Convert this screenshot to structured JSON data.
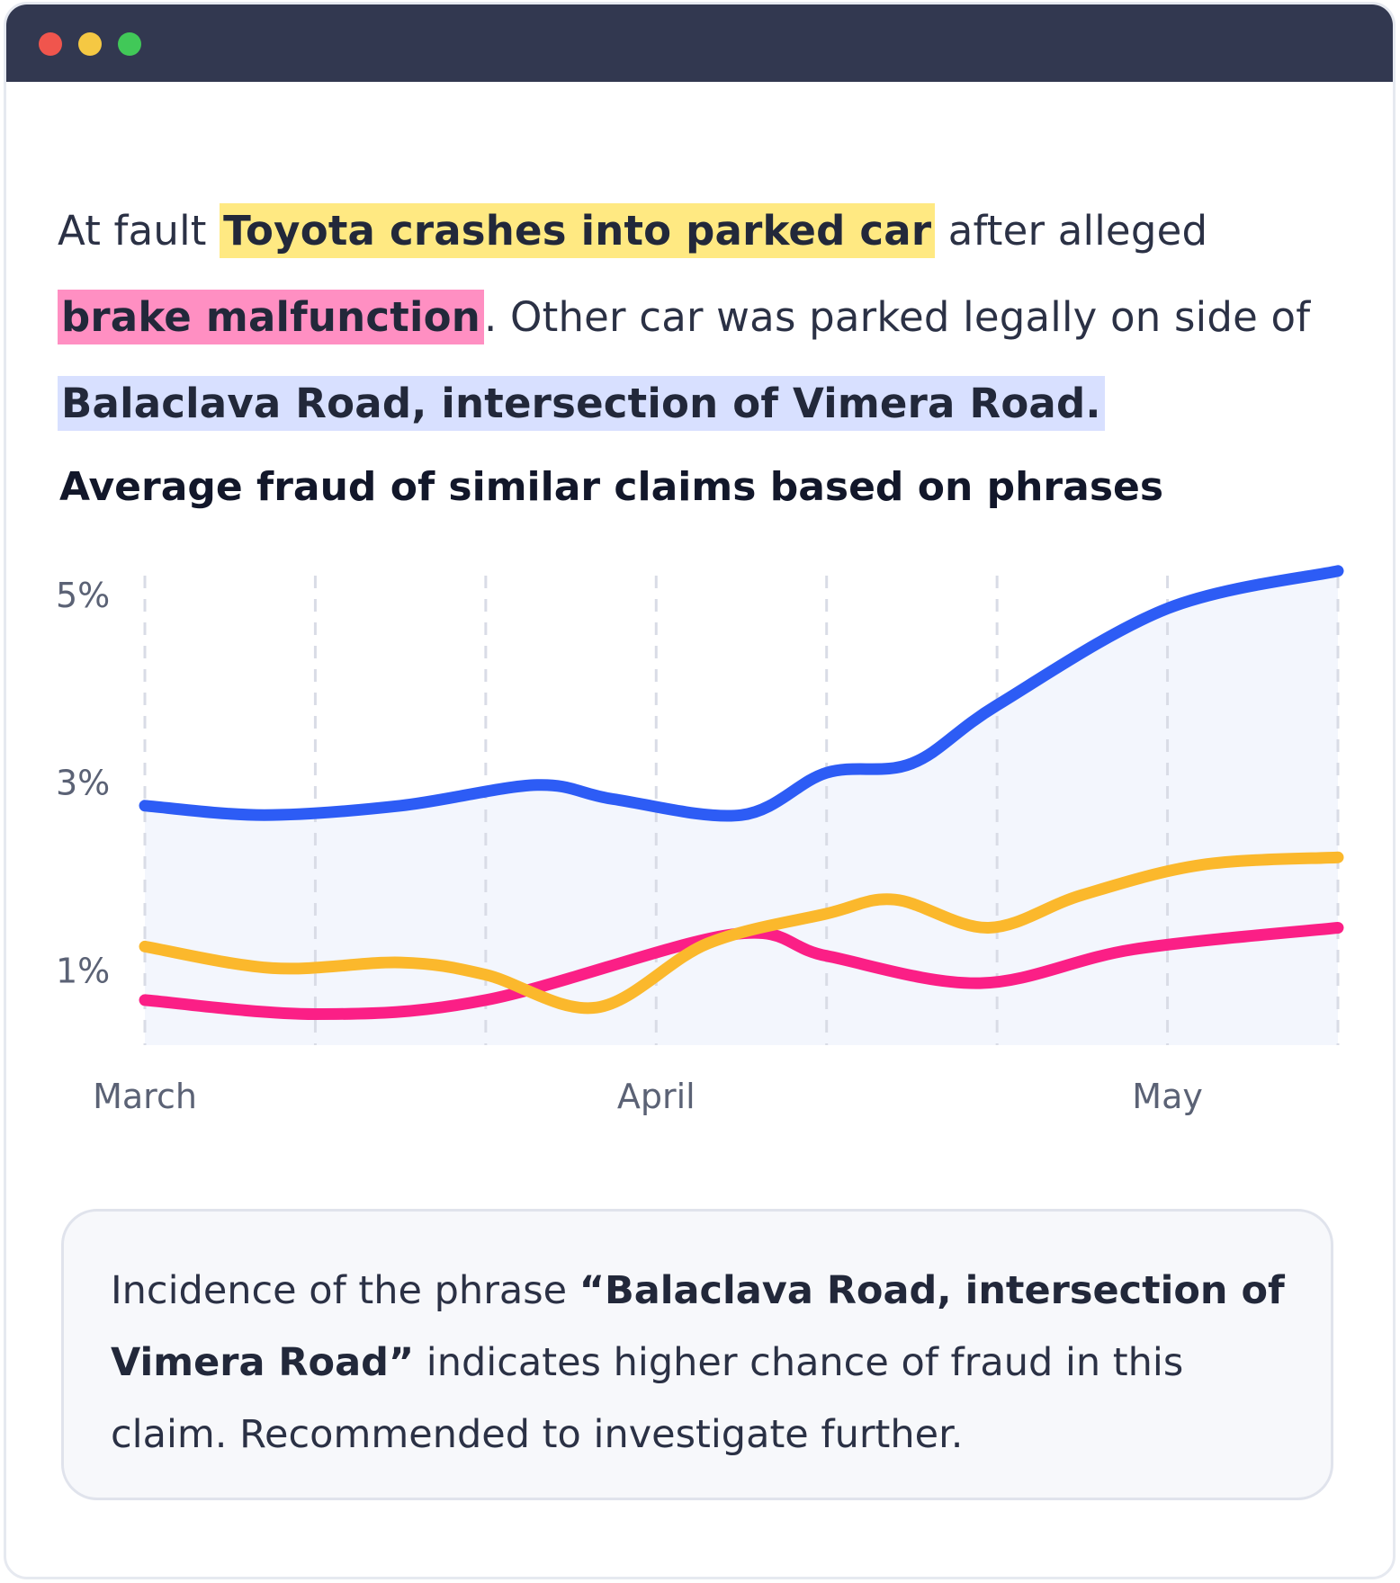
{
  "window": {
    "controls": [
      "close",
      "minimize",
      "maximize"
    ]
  },
  "claim": {
    "prefix": "At fault ",
    "highlight_1": "Toyota crashes into parked car",
    "middle_1": " after alleged ",
    "highlight_2": "brake malfunction",
    "middle_2": ". Other car was parked legally on side of ",
    "highlight_3": "Balaclava Road, intersection of Vimera Road.",
    "colors": {
      "highlight_1": "#ffe982",
      "highlight_2": "#ff8fc2",
      "highlight_3": "#d8e0ff"
    }
  },
  "chart_data": {
    "type": "line",
    "title": "Average fraud of similar claims based on phrases",
    "y_ticks": [
      "5%",
      "3%",
      "1%"
    ],
    "y_tick_values": [
      5,
      3,
      1
    ],
    "ylim": [
      0.2,
      5.2
    ],
    "x_tick_labels": [
      "March",
      "April",
      "May"
    ],
    "x_tick_positions": [
      0,
      3,
      6
    ],
    "xlim": [
      0,
      7
    ],
    "grid": "vertical-dashed",
    "series": [
      {
        "color": "#2d5cf5",
        "area_fill": "#f3f6fd",
        "points": [
          [
            0,
            2.75
          ],
          [
            0.7,
            2.65
          ],
          [
            1.5,
            2.75
          ],
          [
            2.3,
            2.97
          ],
          [
            2.75,
            2.82
          ],
          [
            3.5,
            2.65
          ],
          [
            4.0,
            3.1
          ],
          [
            4.5,
            3.2
          ],
          [
            5.0,
            3.82
          ],
          [
            6.0,
            4.85
          ],
          [
            7.0,
            5.25
          ]
        ]
      },
      {
        "color": "#fbb82c",
        "points": [
          [
            0,
            1.25
          ],
          [
            0.75,
            1.02
          ],
          [
            1.5,
            1.08
          ],
          [
            2.0,
            0.95
          ],
          [
            2.65,
            0.6
          ],
          [
            3.3,
            1.28
          ],
          [
            4.0,
            1.6
          ],
          [
            4.4,
            1.75
          ],
          [
            4.95,
            1.45
          ],
          [
            5.5,
            1.8
          ],
          [
            6.2,
            2.12
          ],
          [
            7.0,
            2.2
          ]
        ]
      },
      {
        "color": "#fb1f86",
        "points": [
          [
            0,
            0.68
          ],
          [
            1.0,
            0.53
          ],
          [
            2.0,
            0.68
          ],
          [
            3.45,
            1.38
          ],
          [
            4.0,
            1.15
          ],
          [
            4.9,
            0.86
          ],
          [
            5.8,
            1.22
          ],
          [
            7.0,
            1.45
          ]
        ]
      }
    ]
  },
  "callout": {
    "text_1": "Incidence of the phrase ",
    "quote": "“Balaclava Road, intersection of Vimera Road”",
    "text_2": " indicates higher chance of fraud in this claim. Recommended to investigate further."
  }
}
